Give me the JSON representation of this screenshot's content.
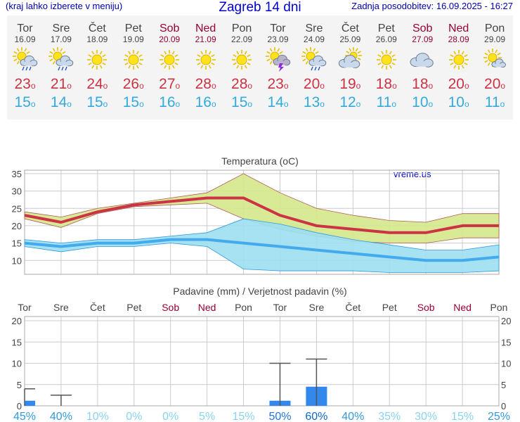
{
  "header": {
    "menu_hint": "(kraj lahko izberete v meniju)",
    "title": "Zagreb 14 dni",
    "updated": "Zadnja posodobitev: 16.09.2025 - 16:27"
  },
  "forecast": [
    {
      "day": "Tor",
      "date": "16.09",
      "icon": "sun-cloud-rain-icon",
      "max": "23",
      "min": "15",
      "weekend": false
    },
    {
      "day": "Sre",
      "date": "17.09",
      "icon": "sun-cloud-rain-icon",
      "max": "21",
      "min": "14",
      "weekend": false
    },
    {
      "day": "Čet",
      "date": "18.09",
      "icon": "sun-icon",
      "max": "24",
      "min": "15",
      "weekend": false
    },
    {
      "day": "Pet",
      "date": "19.09",
      "icon": "sun-icon",
      "max": "26",
      "min": "15",
      "weekend": false
    },
    {
      "day": "Sob",
      "date": "20.09",
      "icon": "sun-icon",
      "max": "27",
      "min": "16",
      "weekend": true
    },
    {
      "day": "Ned",
      "date": "21.09",
      "icon": "sun-icon",
      "max": "28",
      "min": "16",
      "weekend": true
    },
    {
      "day": "Pon",
      "date": "22.09",
      "icon": "sun-icon",
      "max": "28",
      "min": "15",
      "weekend": false
    },
    {
      "day": "Tor",
      "date": "23.09",
      "icon": "sun-storm-icon",
      "max": "23",
      "min": "14",
      "weekend": false
    },
    {
      "day": "Sre",
      "date": "24.09",
      "icon": "sun-cloud-rain-icon",
      "max": "20",
      "min": "13",
      "weekend": false
    },
    {
      "day": "Čet",
      "date": "25.09",
      "icon": "sun-cloud-icon",
      "max": "19",
      "min": "12",
      "weekend": false
    },
    {
      "day": "Pet",
      "date": "26.09",
      "icon": "sun-icon",
      "max": "18",
      "min": "11",
      "weekend": false
    },
    {
      "day": "Sob",
      "date": "27.09",
      "icon": "cloud-icon",
      "max": "18",
      "min": "10",
      "weekend": true
    },
    {
      "day": "Ned",
      "date": "28.09",
      "icon": "sun-icon",
      "max": "20",
      "min": "10",
      "weekend": true
    },
    {
      "day": "Pon",
      "date": "29.09",
      "icon": "sun-cloud-small-icon",
      "max": "20",
      "min": "11",
      "weekend": false
    }
  ],
  "degree_symbol": "o",
  "chart_data": [
    {
      "type": "line",
      "title": "Temperatura (oC)",
      "watermark": "vreme.us",
      "x": [
        "Tor",
        "Sre",
        "Čet",
        "Pet",
        "Sob",
        "Ned",
        "Pon",
        "Tor",
        "Sre",
        "Čet",
        "Pet",
        "Sob",
        "Ned",
        "Pon"
      ],
      "ylim": [
        6,
        36
      ],
      "yticks": [
        10,
        15,
        20,
        25,
        30,
        35
      ],
      "grid": true,
      "series": [
        {
          "values": [
            23,
            21,
            24,
            26,
            27,
            28,
            28,
            23,
            20,
            19,
            18,
            18,
            20,
            20
          ],
          "color": "#cc3344"
        },
        {
          "values": [
            15,
            14,
            15,
            15,
            16,
            16,
            15,
            14,
            13,
            12,
            11,
            10,
            10,
            11
          ],
          "color": "#44aaee"
        }
      ],
      "bands": [
        {
          "upper": [
            24,
            22.5,
            25,
            26.5,
            28,
            29.5,
            35,
            29.5,
            25,
            23,
            21.5,
            21,
            23.5,
            23.5
          ],
          "lower": [
            22,
            19.5,
            23.5,
            25.5,
            26,
            26.5,
            22,
            19,
            17,
            15.5,
            15,
            15,
            16.5,
            16.5
          ],
          "fill": "#d4e88a",
          "stroke": "#b35a5a"
        },
        {
          "upper": [
            16,
            15,
            16,
            16,
            17,
            18,
            22,
            20.5,
            18,
            16,
            14.5,
            13,
            13,
            14.5
          ],
          "lower": [
            14,
            12.5,
            14,
            14,
            15,
            14,
            7.5,
            7,
            7,
            7,
            6.5,
            6.5,
            6.5,
            7
          ],
          "fill": "#9cdff0",
          "stroke": "#3399dd"
        }
      ]
    },
    {
      "type": "bar",
      "title": "Padavine (mm) / Verjetnost padavin (%)",
      "categories": [
        "Tor",
        "Sre",
        "Čet",
        "Pet",
        "Sob",
        "Ned",
        "Pon",
        "Tor",
        "Sre",
        "Čet",
        "Pet",
        "Sob",
        "Ned",
        "Pon"
      ],
      "values": [
        1.2,
        0,
        0,
        0,
        0,
        0,
        0,
        1.2,
        4.5,
        0,
        0,
        0,
        0,
        0
      ],
      "error_max": [
        4,
        2.5,
        0,
        0,
        0,
        0,
        0,
        10,
        11,
        0,
        0,
        0,
        0,
        0
      ],
      "ylim": [
        0,
        21
      ],
      "yticks": [
        0,
        5,
        10,
        15,
        20
      ],
      "probability": [
        "45%",
        "40%",
        "10%",
        "0%",
        "0%",
        "5%",
        "15%",
        "50%",
        "60%",
        "40%",
        "35%",
        "30%",
        "15%",
        "25%"
      ],
      "probability_colors": [
        "#3399dd",
        "#3399dd",
        "#88d4ee",
        "#88d4ee",
        "#88d4ee",
        "#88d4ee",
        "#88d4ee",
        "#2277dd",
        "#1166cc",
        "#3399dd",
        "#88d4ee",
        "#88d4ee",
        "#88d4ee",
        "#3399dd"
      ],
      "bar_color": "#3388ee",
      "grid": true
    }
  ]
}
